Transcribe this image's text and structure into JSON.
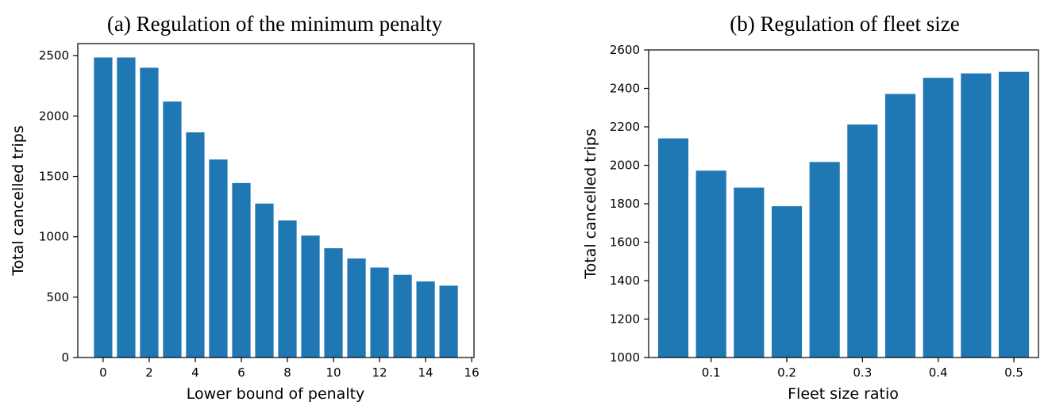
{
  "chart_data": [
    {
      "type": "bar",
      "title": "(a) Regulation of the minimum penalty",
      "xlabel": "Lower bound of penalty",
      "ylabel": "Total cancelled trips",
      "x": [
        0,
        1,
        2,
        3,
        4,
        5,
        6,
        7,
        8,
        9,
        10,
        11,
        12,
        13,
        14,
        15
      ],
      "values": [
        2485,
        2485,
        2400,
        2120,
        1865,
        1640,
        1445,
        1275,
        1135,
        1010,
        905,
        820,
        745,
        685,
        630,
        595
      ],
      "xlim": [
        -1.1,
        16.1
      ],
      "ylim": [
        0,
        2600
      ],
      "xticks": [
        0,
        2,
        4,
        6,
        8,
        10,
        12,
        14,
        16
      ],
      "yticks": [
        0,
        500,
        1000,
        1500,
        2000,
        2500
      ],
      "bar_width": 0.8,
      "color": "#1f77b4",
      "grid": false,
      "legend": "none"
    },
    {
      "type": "bar",
      "title": "(b) Regulation of fleet size",
      "xlabel": "Fleet size ratio",
      "ylabel": "Total cancelled trips",
      "x": [
        0.05,
        0.1,
        0.15,
        0.2,
        0.25,
        0.3,
        0.35,
        0.4,
        0.45,
        0.5
      ],
      "values": [
        2140,
        1972,
        1884,
        1787,
        2017,
        2212,
        2371,
        2455,
        2478,
        2486
      ],
      "xlim": [
        0.0175,
        0.5325
      ],
      "ylim": [
        1000,
        2600
      ],
      "xticks": [
        0.1,
        0.2,
        0.3,
        0.4,
        0.5
      ],
      "yticks": [
        1000,
        1200,
        1400,
        1600,
        1800,
        2000,
        2200,
        2400,
        2600
      ],
      "bar_width": 0.04,
      "color": "#1f77b4",
      "grid": false,
      "legend": "none"
    }
  ]
}
